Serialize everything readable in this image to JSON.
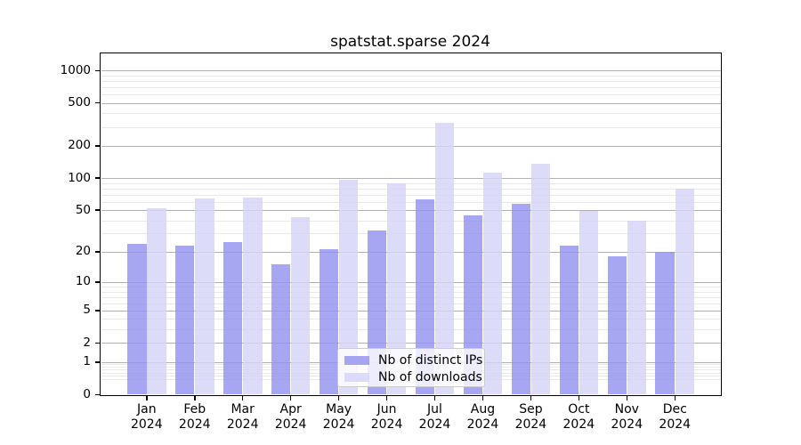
{
  "chart_data": {
    "type": "bar",
    "title": "spatstat.sparse 2024",
    "categories": [
      "Jan 2024",
      "Feb 2024",
      "Mar 2024",
      "Apr 2024",
      "May 2024",
      "Jun 2024",
      "Jul 2024",
      "Aug 2024",
      "Sep 2024",
      "Oct 2024",
      "Nov 2024",
      "Dec 2024"
    ],
    "series": [
      {
        "name": "Nb of distinct IPs",
        "color": "rgba(146,146,239,0.82)",
        "values": [
          24,
          23,
          25,
          15,
          21,
          32,
          63,
          45,
          57,
          23,
          18,
          20
        ]
      },
      {
        "name": "Nb of downloads",
        "color": "rgba(212,212,248,0.82)",
        "values": [
          52,
          64,
          66,
          43,
          96,
          90,
          325,
          112,
          135,
          49,
          40,
          79
        ]
      }
    ],
    "xlabel": "",
    "ylabel": "",
    "yscale": "log1p",
    "yticks": [
      0,
      1,
      2,
      5,
      10,
      20,
      50,
      100,
      200,
      500,
      1000
    ],
    "ylim": [
      0,
      1430
    ],
    "grid": true,
    "legend_position": "lower center inside plot",
    "colors": {
      "background": "#ffffff",
      "spine": "#000000",
      "grid_major": "#b3b3b3",
      "grid_minor": "#e9e9e9",
      "legend_border": "#cccccc"
    }
  }
}
